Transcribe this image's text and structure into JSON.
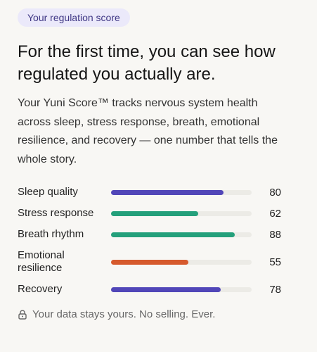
{
  "badge": "Your regulation score",
  "heading": "For the first time, you can see how regulated you actually are.",
  "description": "Your Yuni Score™ tracks nervous system health across sleep, stress response, breath, emotional resilience, and recovery — one number that tells the whole story.",
  "scores": {
    "xlim": [
      0,
      100
    ],
    "track_color": "#ecebe6",
    "rows": [
      {
        "label": "Sleep quality",
        "value": 80,
        "color": "#5146b8"
      },
      {
        "label": "Stress response",
        "value": 62,
        "color": "#24a07b"
      },
      {
        "label": "Breath rhythm",
        "value": 88,
        "color": "#24a07b"
      },
      {
        "label": "Emotional resilience",
        "value": 55,
        "color": "#d65a2d"
      },
      {
        "label": "Recovery",
        "value": 78,
        "color": "#5146b8"
      }
    ]
  },
  "footer": "Your data stays yours. No selling. Ever."
}
